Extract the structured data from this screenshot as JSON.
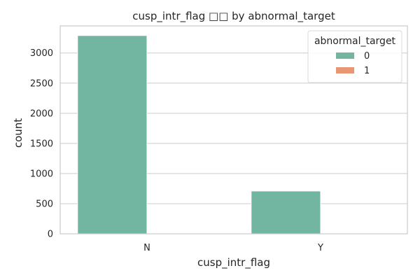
{
  "chart_data": {
    "type": "bar",
    "title": "cusp_intr_flag □□ by abnormal_target",
    "xlabel": "cusp_intr_flag",
    "ylabel": "count",
    "categories": [
      "N",
      "Y"
    ],
    "series": [
      {
        "name": "0",
        "values": [
          3290,
          710
        ],
        "color": "#72b6a1"
      },
      {
        "name": "1",
        "values": [
          0,
          0
        ],
        "color": "#e99675"
      }
    ],
    "ylim": [
      0,
      3450
    ],
    "yticks": [
      0,
      500,
      1000,
      1500,
      2000,
      2500,
      3000
    ],
    "grid": true,
    "legend": {
      "title": "abnormal_target",
      "position": "top-right"
    }
  }
}
